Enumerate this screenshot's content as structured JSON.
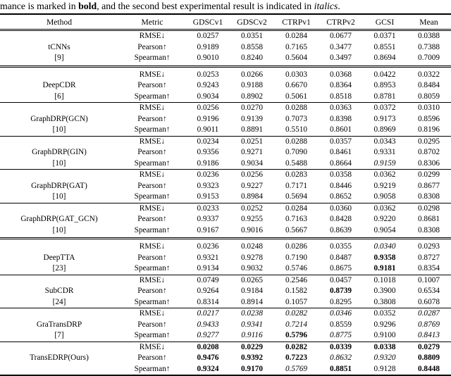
{
  "caption": {
    "part1": "mance is marked in ",
    "bold_word": "bold",
    "part2": ", and the second best experimental result is indicated in ",
    "italic_word": "italics",
    "part3": "."
  },
  "table": {
    "columns": [
      "Method",
      "Metric",
      "GDSCv1",
      "GDSCv2",
      "CTRPv1",
      "CTRPv2",
      "GCSI",
      "Mean"
    ],
    "groups": [
      {
        "method": "tCNNs",
        "ref": "[9]",
        "separator_after": "double",
        "rows": [
          {
            "metric": "RMSE↓",
            "values": [
              {
                "v": "0.0257"
              },
              {
                "v": "0.0351"
              },
              {
                "v": "0.0284"
              },
              {
                "v": "0.0677"
              },
              {
                "v": "0.0371"
              },
              {
                "v": "0.0388"
              }
            ]
          },
          {
            "metric": "Pearson↑",
            "values": [
              {
                "v": "0.9189"
              },
              {
                "v": "0.8558"
              },
              {
                "v": "0.7165"
              },
              {
                "v": "0.3477"
              },
              {
                "v": "0.8551"
              },
              {
                "v": "0.7388"
              }
            ]
          },
          {
            "metric": "Spearman↑",
            "values": [
              {
                "v": "0.9010"
              },
              {
                "v": "0.8240"
              },
              {
                "v": "0.5604"
              },
              {
                "v": "0.3497"
              },
              {
                "v": "0.8694"
              },
              {
                "v": "0.7009"
              }
            ]
          }
        ]
      },
      {
        "method": "DeepCDR",
        "ref": "[6]",
        "separator_after": "single",
        "rows": [
          {
            "metric": "RMSE↓",
            "values": [
              {
                "v": "0.0253"
              },
              {
                "v": "0.0266"
              },
              {
                "v": "0.0303"
              },
              {
                "v": "0.0368"
              },
              {
                "v": "0.0422"
              },
              {
                "v": "0.0322"
              }
            ]
          },
          {
            "metric": "Pearson↑",
            "values": [
              {
                "v": "0.9243"
              },
              {
                "v": "0.9188"
              },
              {
                "v": "0.6670"
              },
              {
                "v": "0.8364"
              },
              {
                "v": "0.8953"
              },
              {
                "v": "0.8484"
              }
            ]
          },
          {
            "metric": "Spearman↑",
            "values": [
              {
                "v": "0.9034"
              },
              {
                "v": "0.8902"
              },
              {
                "v": "0.5061"
              },
              {
                "v": "0.8518"
              },
              {
                "v": "0.8781"
              },
              {
                "v": "0.8059"
              }
            ]
          }
        ]
      },
      {
        "method": "GraphDRP(GCN)",
        "ref": "[10]",
        "separator_after": "single",
        "rows": [
          {
            "metric": "RMSE↓",
            "values": [
              {
                "v": "0.0256"
              },
              {
                "v": "0.0270"
              },
              {
                "v": "0.0288"
              },
              {
                "v": "0.0363"
              },
              {
                "v": "0.0372"
              },
              {
                "v": "0.0310"
              }
            ]
          },
          {
            "metric": "Pearson↑",
            "values": [
              {
                "v": "0.9196"
              },
              {
                "v": "0.9139"
              },
              {
                "v": "0.7073"
              },
              {
                "v": "0.8398"
              },
              {
                "v": "0.9173"
              },
              {
                "v": "0.8596"
              }
            ]
          },
          {
            "metric": "Spearman↑",
            "values": [
              {
                "v": "0.9011"
              },
              {
                "v": "0.8891"
              },
              {
                "v": "0.5510"
              },
              {
                "v": "0.8601"
              },
              {
                "v": "0.8969"
              },
              {
                "v": "0.8196"
              }
            ]
          }
        ]
      },
      {
        "method": "GraphDRP(GIN)",
        "ref": "[10]",
        "separator_after": "single",
        "rows": [
          {
            "metric": "RMSE↓",
            "values": [
              {
                "v": "0.0234"
              },
              {
                "v": "0.0251"
              },
              {
                "v": "0.0288"
              },
              {
                "v": "0.0357"
              },
              {
                "v": "0.0343"
              },
              {
                "v": "0.0295"
              }
            ]
          },
          {
            "metric": "Pearson↑",
            "values": [
              {
                "v": "0.9356"
              },
              {
                "v": "0.9271"
              },
              {
                "v": "0.7090"
              },
              {
                "v": "0.8461"
              },
              {
                "v": "0.9331"
              },
              {
                "v": "0.8702"
              }
            ]
          },
          {
            "metric": "Spearman↑",
            "values": [
              {
                "v": "0.9186"
              },
              {
                "v": "0.9034"
              },
              {
                "v": "0.5488"
              },
              {
                "v": "0.8664"
              },
              {
                "v": "0.9159",
                "s": "i"
              },
              {
                "v": "0.8306"
              }
            ]
          }
        ]
      },
      {
        "method": "GraphDRP(GAT)",
        "ref": "[10]",
        "separator_after": "single",
        "rows": [
          {
            "metric": "RMSE↓",
            "values": [
              {
                "v": "0.0236"
              },
              {
                "v": "0.0256"
              },
              {
                "v": "0.0283"
              },
              {
                "v": "0.0358"
              },
              {
                "v": "0.0362"
              },
              {
                "v": "0.0299"
              }
            ]
          },
          {
            "metric": "Pearson↑",
            "values": [
              {
                "v": "0.9323"
              },
              {
                "v": "0.9227"
              },
              {
                "v": "0.7171"
              },
              {
                "v": "0.8446"
              },
              {
                "v": "0.9219"
              },
              {
                "v": "0.8677"
              }
            ]
          },
          {
            "metric": "Spearman↑",
            "values": [
              {
                "v": "0.9153"
              },
              {
                "v": "0.8984"
              },
              {
                "v": "0.5694"
              },
              {
                "v": "0.8652"
              },
              {
                "v": "0.9058"
              },
              {
                "v": "0.8308"
              }
            ]
          }
        ]
      },
      {
        "method": "GraphDRP(GAT_GCN)",
        "ref": "[10]",
        "separator_after": "double",
        "rows": [
          {
            "metric": "RMSE↓",
            "values": [
              {
                "v": "0.0233"
              },
              {
                "v": "0.0252"
              },
              {
                "v": "0.0284"
              },
              {
                "v": "0.0360"
              },
              {
                "v": "0.0362"
              },
              {
                "v": "0.0298"
              }
            ]
          },
          {
            "metric": "Pearson↑",
            "values": [
              {
                "v": "0.9337"
              },
              {
                "v": "0.9255"
              },
              {
                "v": "0.7163"
              },
              {
                "v": "0.8428"
              },
              {
                "v": "0.9220"
              },
              {
                "v": "0.8681"
              }
            ]
          },
          {
            "metric": "Spearman↑",
            "values": [
              {
                "v": "0.9167"
              },
              {
                "v": "0.9016"
              },
              {
                "v": "0.5667"
              },
              {
                "v": "0.8639"
              },
              {
                "v": "0.9054"
              },
              {
                "v": "0.8308"
              }
            ]
          }
        ]
      },
      {
        "method": "DeepTTA",
        "ref": "[23]",
        "separator_after": "single",
        "rows": [
          {
            "metric": "RMSE↓",
            "values": [
              {
                "v": "0.0236"
              },
              {
                "v": "0.0248"
              },
              {
                "v": "0.0286"
              },
              {
                "v": "0.0355"
              },
              {
                "v": "0.0340",
                "s": "i"
              },
              {
                "v": "0.0293"
              }
            ]
          },
          {
            "metric": "Pearson↑",
            "values": [
              {
                "v": "0.9321"
              },
              {
                "v": "0.9278"
              },
              {
                "v": "0.7190"
              },
              {
                "v": "0.8487"
              },
              {
                "v": "0.9358",
                "s": "b"
              },
              {
                "v": "0.8727"
              }
            ]
          },
          {
            "metric": "Spearman↑",
            "values": [
              {
                "v": "0.9134"
              },
              {
                "v": "0.9032"
              },
              {
                "v": "0.5746"
              },
              {
                "v": "0.8675"
              },
              {
                "v": "0.9181",
                "s": "b"
              },
              {
                "v": "0.8354"
              }
            ]
          }
        ]
      },
      {
        "method": "SubCDR",
        "ref": "[24]",
        "separator_after": "single",
        "rows": [
          {
            "metric": "RMSE↓",
            "values": [
              {
                "v": "0.0749"
              },
              {
                "v": "0.0265"
              },
              {
                "v": "0.2546"
              },
              {
                "v": "0.0457"
              },
              {
                "v": "0.1018"
              },
              {
                "v": "0.1007"
              }
            ]
          },
          {
            "metric": "Pearson↑",
            "values": [
              {
                "v": "0.9264"
              },
              {
                "v": "0.9184"
              },
              {
                "v": "0.1582"
              },
              {
                "v": "0.8739",
                "s": "b"
              },
              {
                "v": "0.3900"
              },
              {
                "v": "0.6534"
              }
            ]
          },
          {
            "metric": "Spearman↑",
            "values": [
              {
                "v": "0.8314"
              },
              {
                "v": "0.8914"
              },
              {
                "v": "0.1057"
              },
              {
                "v": "0.8295"
              },
              {
                "v": "0.3808"
              },
              {
                "v": "0.6078"
              }
            ]
          }
        ]
      },
      {
        "method": "GraTransDRP",
        "ref": "[7]",
        "separator_after": "single",
        "rows": [
          {
            "metric": "RMSE↓",
            "values": [
              {
                "v": "0.0217",
                "s": "i"
              },
              {
                "v": "0.0238",
                "s": "i"
              },
              {
                "v": "0.0282",
                "s": "i"
              },
              {
                "v": "0.0346",
                "s": "i"
              },
              {
                "v": "0.0352"
              },
              {
                "v": "0.0287",
                "s": "i"
              }
            ]
          },
          {
            "metric": "Pearson↑",
            "values": [
              {
                "v": "0.9433",
                "s": "i"
              },
              {
                "v": "0.9341",
                "s": "i"
              },
              {
                "v": "0.7214",
                "s": "i"
              },
              {
                "v": "0.8559"
              },
              {
                "v": "0.9296"
              },
              {
                "v": "0.8769",
                "s": "i"
              }
            ]
          },
          {
            "metric": "Spearman↑",
            "values": [
              {
                "v": "0.9277",
                "s": "i"
              },
              {
                "v": "0.9116",
                "s": "i"
              },
              {
                "v": "0.5796",
                "s": "b"
              },
              {
                "v": "0.8775",
                "s": "i"
              },
              {
                "v": "0.9100"
              },
              {
                "v": "0.8413",
                "s": "i"
              }
            ]
          }
        ]
      },
      {
        "method": "TransEDRP(Ours)",
        "ref": "",
        "separator_after": "none",
        "rows": [
          {
            "metric": "RMSE↓",
            "values": [
              {
                "v": "0.0208",
                "s": "b"
              },
              {
                "v": "0.0229",
                "s": "b"
              },
              {
                "v": "0.0282",
                "s": "b"
              },
              {
                "v": "0.0339",
                "s": "b"
              },
              {
                "v": "0.0338",
                "s": "b"
              },
              {
                "v": "0.0279",
                "s": "b"
              }
            ]
          },
          {
            "metric": "Pearson↑",
            "values": [
              {
                "v": "0.9476",
                "s": "b"
              },
              {
                "v": "0.9392",
                "s": "b"
              },
              {
                "v": "0.7223",
                "s": "b"
              },
              {
                "v": "0.8632",
                "s": "i"
              },
              {
                "v": "0.9320",
                "s": "i"
              },
              {
                "v": "0.8809",
                "s": "b"
              }
            ]
          },
          {
            "metric": "Spearman↑",
            "values": [
              {
                "v": "0.9324",
                "s": "b"
              },
              {
                "v": "0.9170",
                "s": "b"
              },
              {
                "v": "0.5769",
                "s": "i"
              },
              {
                "v": "0.8851",
                "s": "b"
              },
              {
                "v": "0.9128"
              },
              {
                "v": "0.8448",
                "s": "b"
              }
            ]
          }
        ]
      }
    ]
  }
}
